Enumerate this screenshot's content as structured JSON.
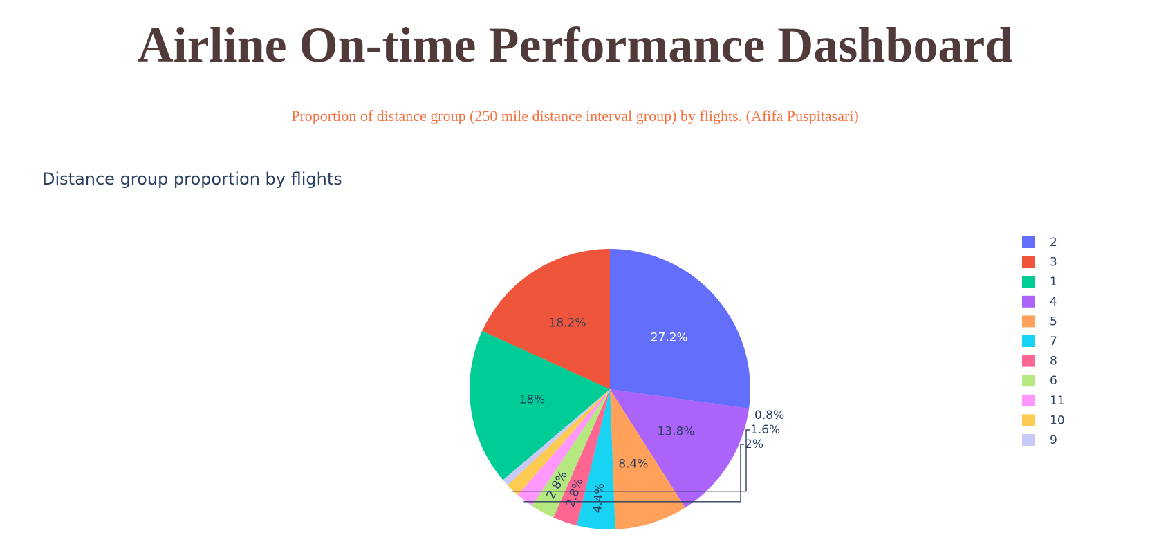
{
  "header": {
    "title": "Airline On-time Performance Dashboard",
    "subtitle": "Proportion of distance group (250 mile distance interval group) by flights. (Afifa Puspitasari)"
  },
  "colors": {
    "title": "#503A3A",
    "subtitle": "#F57241",
    "chart_text": "#2a3f5f"
  },
  "chart_data": {
    "type": "pie",
    "title": "Distance group proportion by flights",
    "legend_position": "right",
    "slices": [
      {
        "label": "2",
        "percent": 27.2,
        "display": "27.2%",
        "color": "#636EFA",
        "text_color": "#ffffff",
        "label_inside": true
      },
      {
        "label": "4",
        "percent": 13.8,
        "display": "13.8%",
        "color": "#AB63FA",
        "text_color": "#2a3f5f",
        "label_inside": true
      },
      {
        "label": "5",
        "percent": 8.4,
        "display": "8.4%",
        "color": "#FFA15A",
        "text_color": "#2a3f5f",
        "label_inside": true
      },
      {
        "label": "7",
        "percent": 4.4,
        "display": "4.4%",
        "color": "#19D3F3",
        "text_color": "#2a3f5f",
        "label_inside": true
      },
      {
        "label": "8",
        "percent": 2.8,
        "display": "2.8%",
        "color": "#FF6692",
        "text_color": "#2a3f5f",
        "label_inside": true
      },
      {
        "label": "6",
        "percent": 2.8,
        "display": "2.8%",
        "color": "#B6E880",
        "text_color": "#2a3f5f",
        "label_inside": true
      },
      {
        "label": "11",
        "percent": 2.0,
        "display": "2%",
        "color": "#FF97FF",
        "text_color": "#2a3f5f",
        "label_inside": false
      },
      {
        "label": "10",
        "percent": 1.6,
        "display": "1.6%",
        "color": "#FECB52",
        "text_color": "#2a3f5f",
        "label_inside": false
      },
      {
        "label": "9",
        "percent": 0.8,
        "display": "0.8%",
        "color": "#C6CAF4",
        "text_color": "#2a3f5f",
        "label_inside": false
      },
      {
        "label": "1",
        "percent": 18.0,
        "display": "18%",
        "color": "#00CC96",
        "text_color": "#2a3f5f",
        "label_inside": true
      },
      {
        "label": "3",
        "percent": 18.2,
        "display": "18.2%",
        "color": "#EF553B",
        "text_color": "#2a3f5f",
        "label_inside": true
      }
    ],
    "legend_order": [
      "2",
      "3",
      "1",
      "4",
      "5",
      "7",
      "8",
      "6",
      "11",
      "10",
      "9"
    ]
  }
}
